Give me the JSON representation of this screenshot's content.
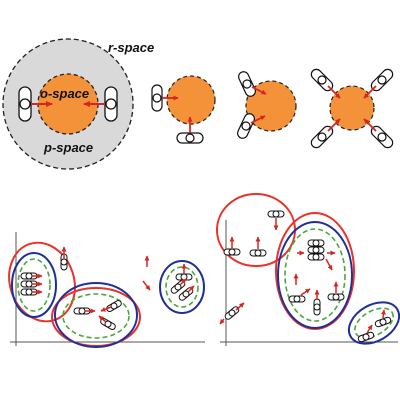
{
  "labels": {
    "r_space": "r-space",
    "o_space": "o-space",
    "p_space": "p-space"
  },
  "colors": {
    "o_space_fill": "#f4923a",
    "r_space_fill": "#d9d9d9",
    "arrow": "#d7261f",
    "outer_ellipse_red": "#e8322a",
    "outer_ellipse_blue": "#1f2f9a",
    "inner_ellipse_green": "#49a83c",
    "axis": "#555555"
  },
  "icons": {
    "person": "person-topview-icon",
    "arrow": "facing-direction-arrow-icon"
  }
}
